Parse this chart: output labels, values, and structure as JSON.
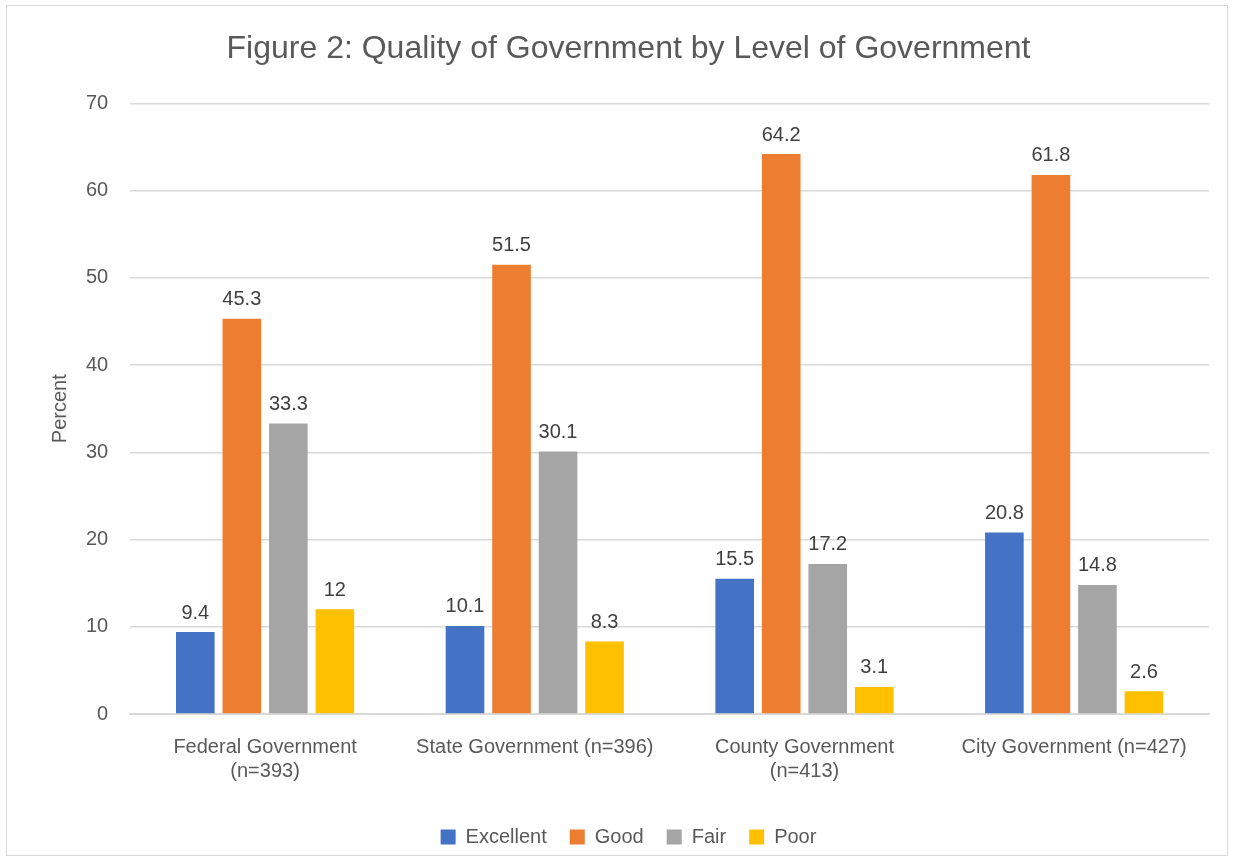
{
  "chart_data": {
    "type": "bar",
    "title": "Figure 2: Quality of Government by Level of Government",
    "ylabel": "Percent",
    "categories": [
      "Federal Government (n=393)",
      "State Government (n=396)",
      "County Government (n=413)",
      "City Government (n=427)"
    ],
    "series": [
      {
        "name": "Excellent",
        "color": "#4472c4",
        "values": [
          9.4,
          10.1,
          15.5,
          20.8
        ]
      },
      {
        "name": "Good",
        "color": "#ed7d31",
        "values": [
          45.3,
          51.5,
          64.2,
          61.8
        ]
      },
      {
        "name": "Fair",
        "color": "#a5a5a5",
        "values": [
          33.3,
          30.1,
          17.2,
          14.8
        ]
      },
      {
        "name": "Poor",
        "color": "#ffc000",
        "values": [
          12,
          8.3,
          3.1,
          2.6
        ]
      }
    ],
    "ylim": [
      0,
      70
    ],
    "yticks": [
      0,
      10,
      20,
      30,
      40,
      50,
      60,
      70
    ],
    "grid": "y",
    "legend": "bottom",
    "data_labels": true
  }
}
